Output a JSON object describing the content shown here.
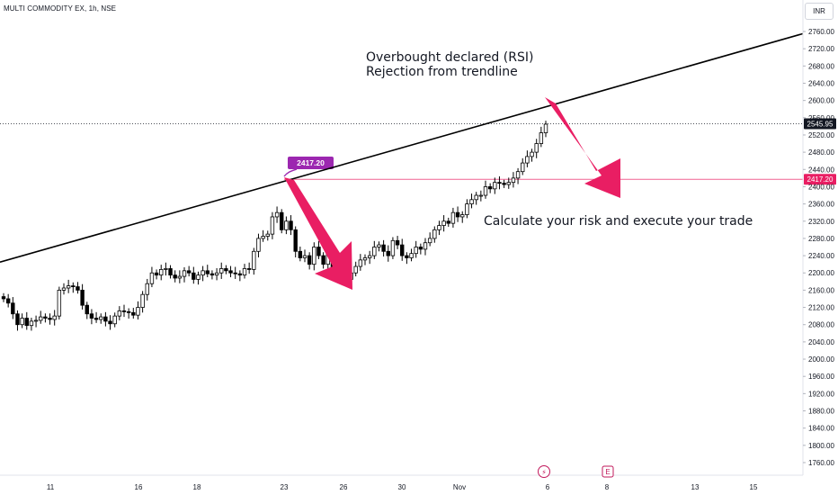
{
  "header": {
    "symbol_title": "MULTI COMMODITY EX, 1h, NSE",
    "currency": "INR"
  },
  "annotations": {
    "note_top_line1": "Overbought declared (RSI)",
    "note_top_line2": "Rejection from trendline",
    "note_right": "Calculate your risk and execute your trade"
  },
  "labels": {
    "current_price": "2545.95",
    "level_price": "2417.20",
    "pivot_badge": "2417.20",
    "events": [
      {
        "x": "6",
        "icon": "lightning-icon",
        "glyph": "⚡"
      },
      {
        "x": "8",
        "icon": "earnings-icon",
        "glyph": "E"
      }
    ]
  },
  "colors": {
    "up_candle": "#ffffff",
    "down_candle": "#000000",
    "wick": "#000000",
    "trendline": "#000000",
    "arrow": "#e91e63",
    "level_line": "#f06292",
    "badge": "#9c27b0",
    "axis_text": "#131722",
    "grid": "#f0f3fa"
  },
  "chart_data": {
    "type": "candlestick",
    "y_axis": {
      "ticks": [
        2760,
        2720,
        2680,
        2640,
        2600,
        2560,
        2520,
        2480,
        2440,
        2400,
        2360,
        2320,
        2280,
        2240,
        2200,
        2160,
        2120,
        2080,
        2040,
        2000,
        1960,
        1920,
        1880,
        1840,
        1800,
        1760
      ],
      "tick_labels": [
        "2760.00",
        "2720.00",
        "2680.00",
        "2640.00",
        "2600.00",
        "2560.00",
        "2520.00",
        "2480.00",
        "2440.00",
        "2400.00",
        "2360.00",
        "2320.00",
        "2280.00",
        "2240.00",
        "2200.00",
        "2160.00",
        "2120.00",
        "2080.00",
        "2040.00",
        "2000.00",
        "1960.00",
        "1920.00",
        "1880.00",
        "1840.00",
        "1800.00",
        "1760.00"
      ],
      "range": [
        1740,
        2790
      ]
    },
    "x_axis": {
      "tick_labels": [
        "11",
        "16",
        "18",
        "23",
        "26",
        "30",
        "Nov",
        "6",
        "8",
        "13",
        "15"
      ]
    },
    "current_price": 2545.95,
    "horizontal_level": 2417.2,
    "trendline": {
      "from_price_at_left_edge": 2225,
      "through_pivot": 2417.2,
      "to_price_at_right_edge": 2755
    },
    "candles_close": [
      2140,
      2130,
      2105,
      2080,
      2095,
      2078,
      2088,
      2090,
      2098,
      2095,
      2092,
      2100,
      2160,
      2165,
      2170,
      2168,
      2160,
      2125,
      2105,
      2095,
      2092,
      2098,
      2088,
      2082,
      2100,
      2112,
      2110,
      2108,
      2102,
      2120,
      2150,
      2175,
      2200,
      2195,
      2208,
      2210,
      2195,
      2188,
      2192,
      2205,
      2200,
      2185,
      2195,
      2205,
      2198,
      2195,
      2200,
      2210,
      2205,
      2200,
      2198,
      2195,
      2210,
      2208,
      2250,
      2280,
      2285,
      2290,
      2330,
      2340,
      2300,
      2320,
      2300,
      2250,
      2235,
      2240,
      2220,
      2260,
      2240,
      2220,
      2245,
      2210,
      2235,
      2225,
      2185,
      2200,
      2215,
      2230,
      2235,
      2240,
      2260,
      2265,
      2250,
      2240,
      2275,
      2265,
      2240,
      2235,
      2245,
      2260,
      2255,
      2270,
      2280,
      2300,
      2310,
      2320,
      2315,
      2340,
      2330,
      2335,
      2360,
      2370,
      2380,
      2380,
      2400,
      2395,
      2410,
      2408,
      2405,
      2410,
      2420,
      2435,
      2455,
      2470,
      2480,
      2500,
      2525,
      2545
    ]
  }
}
